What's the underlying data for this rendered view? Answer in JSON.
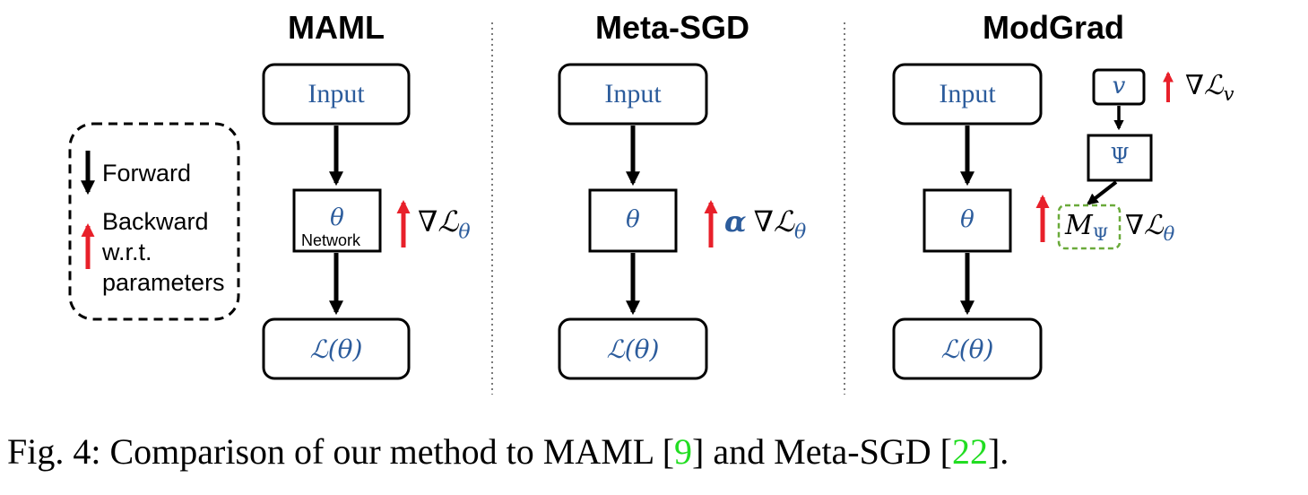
{
  "titles": {
    "maml": "MAML",
    "metasgd": "Meta-SGD",
    "modgrad": "ModGrad"
  },
  "legend": {
    "forward": "Forward",
    "backward_1": "Backward",
    "backward_2": "w.r.t.",
    "backward_3": "parameters"
  },
  "boxes": {
    "input": "Input",
    "theta": "θ",
    "loss": "ℒ(θ)",
    "network": "Network",
    "v": "v",
    "psi": "Ψ"
  },
  "grads": {
    "nabla": "∇",
    "L": "ℒ",
    "theta_sub": "θ",
    "v_sub": "v",
    "alpha": "α",
    "M": "M",
    "psi_sub": "Ψ"
  },
  "caption": {
    "prefix": "Fig. 4: Comparison of our method to MAML [",
    "ref1": "9",
    "middle": "] and Meta-SGD [",
    "ref2": "22",
    "suffix": "]."
  },
  "colors": {
    "arrow_black": "#000000",
    "arrow_red": "#e8202a",
    "math_blue": "#2c5c9c",
    "dashed_green": "#6aaa3a",
    "ref_green": "#22dd22"
  }
}
